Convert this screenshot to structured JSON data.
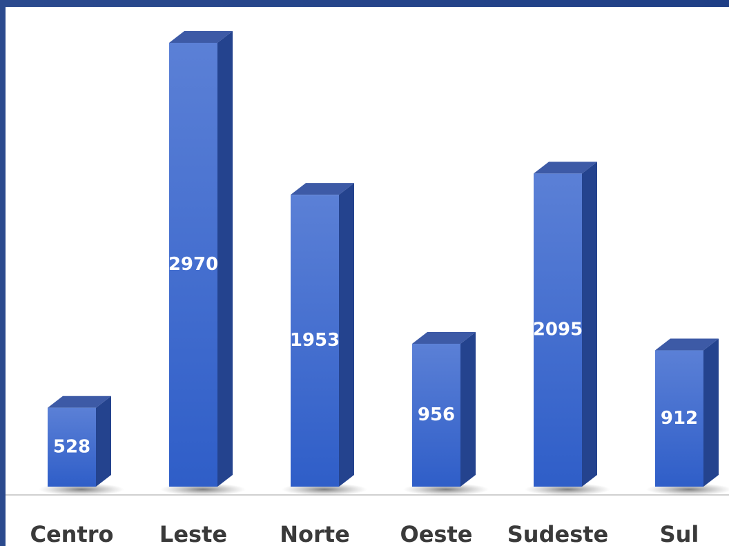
{
  "chart_data": {
    "type": "bar3d",
    "categories": [
      "Centro",
      "Leste",
      "Norte",
      "Oeste",
      "Sudeste",
      "Sul"
    ],
    "values": [
      528,
      2970,
      1953,
      956,
      2095,
      912
    ],
    "color": "#3a64cc"
  }
}
